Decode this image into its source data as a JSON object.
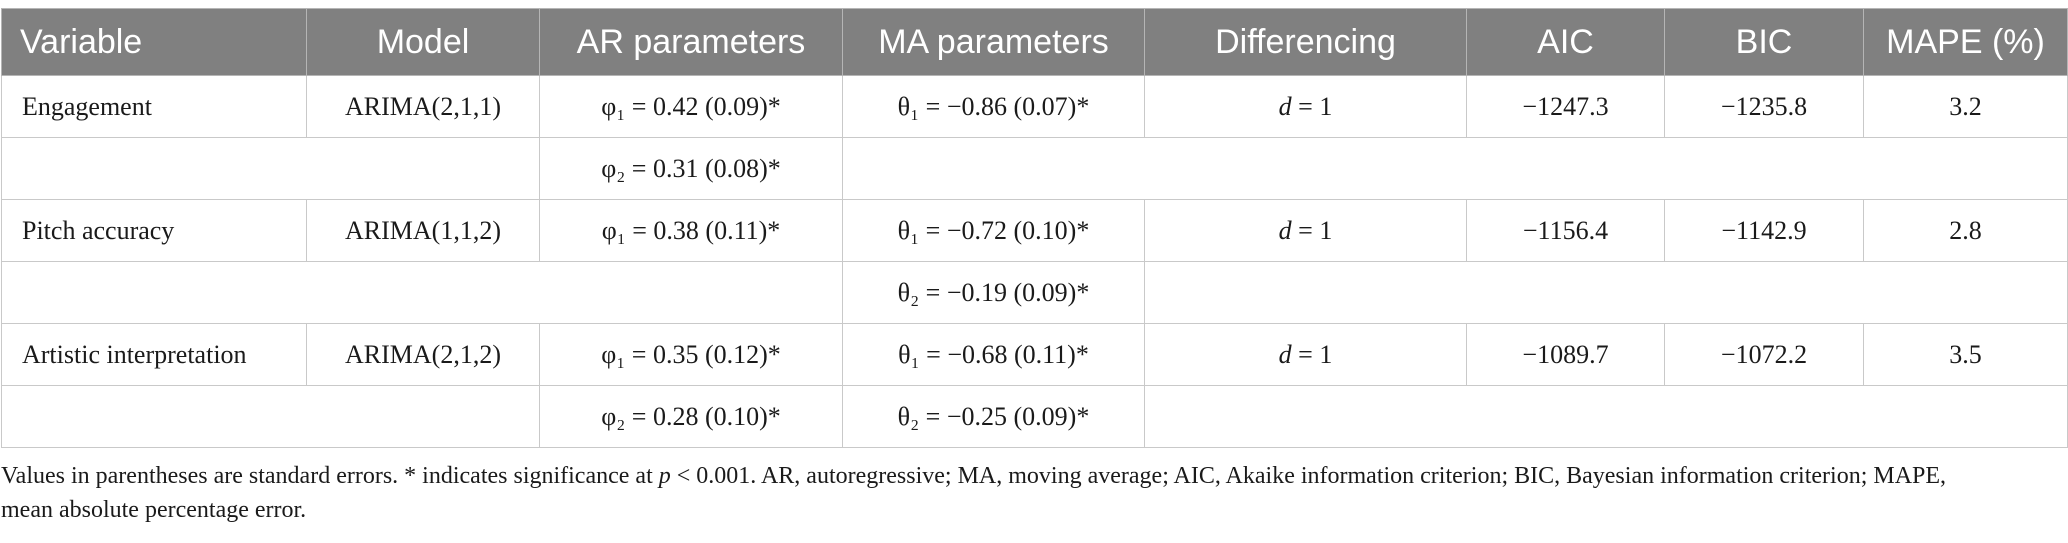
{
  "headers": [
    "Variable",
    "Model",
    "AR parameters",
    "MA parameters",
    "Differencing",
    "AIC",
    "BIC",
    "MAPE (%)"
  ],
  "rows": [
    {
      "variable": "Engagement",
      "model": "ARIMA(2,1,1)",
      "ar": "φ₁ = 0.42 (0.09)*",
      "ma": "θ₁ = −0.86 (0.07)*",
      "d_symbol": "d",
      "d_value": " = 1",
      "aic": "−1247.3",
      "bic": "−1235.8",
      "mape": "3.2",
      "sub_ar": "φ₂ = 0.31 (0.08)*",
      "sub_ma": ""
    },
    {
      "variable": "Pitch accuracy",
      "model": "ARIMA(1,1,2)",
      "ar": "φ₁ = 0.38 (0.11)*",
      "ma": "θ₁ = −0.72 (0.10)*",
      "d_symbol": "d",
      "d_value": " = 1",
      "aic": "−1156.4",
      "bic": "−1142.9",
      "mape": "2.8",
      "sub_ar": "",
      "sub_ma": "θ₂ = −0.19 (0.09)*"
    },
    {
      "variable": "Artistic interpretation",
      "model": "ARIMA(2,1,2)",
      "ar": "φ₁ = 0.35 (0.12)*",
      "ma": "θ₁ = −0.68 (0.11)*",
      "d_symbol": "d",
      "d_value": " = 1",
      "aic": "−1089.7",
      "bic": "−1072.2",
      "mape": "3.5",
      "sub_ar": "φ₂ = 0.28 (0.10)*",
      "sub_ma": "θ₂ = −0.25 (0.09)*"
    }
  ],
  "footnote": {
    "part1": "Values in parentheses are standard errors. * indicates significance at ",
    "p_symbol": "p",
    "part2": " < 0.001. AR, autoregressive; MA, moving average; AIC, Akaike information criterion; BIC, Bayesian information criterion; MAPE, mean absolute percentage error."
  },
  "colors": {
    "header_bg": "#808080",
    "header_text": "#ffffff",
    "border": "#c9c9c9"
  }
}
